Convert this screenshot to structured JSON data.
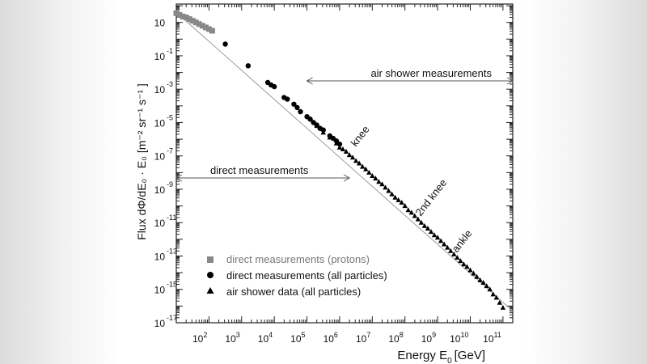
{
  "chart_data": {
    "type": "scatter",
    "xlabel_main": "Energy E",
    "xlabel_sub": "0",
    "xlabel_unit": "[GeV]",
    "ylabel": "Flux dΦ/dE₀ · E₀ [m⁻² sr⁻¹ s⁻¹ ]",
    "xscale": "log",
    "yscale": "log",
    "xlim_exp": [
      1.0,
      11.3
    ],
    "ylim_exp": [
      -17.0,
      2.1
    ],
    "x_tick_labels": [
      {
        "base": "10",
        "exp": "2"
      },
      {
        "base": "10",
        "exp": "3"
      },
      {
        "base": "10",
        "exp": "4"
      },
      {
        "base": "10",
        "exp": "5"
      },
      {
        "base": "10",
        "exp": "6"
      },
      {
        "base": "10",
        "exp": "7"
      },
      {
        "base": "10",
        "exp": "8"
      },
      {
        "base": "10",
        "exp": "9"
      },
      {
        "base": "10",
        "exp": "10"
      },
      {
        "base": "10",
        "exp": "11"
      }
    ],
    "y_tick_labels": [
      {
        "base": "10",
        "exp": ""
      },
      {
        "base": "10",
        "exp": "-1"
      },
      {
        "base": "10",
        "exp": "-3"
      },
      {
        "base": "10",
        "exp": "-5"
      },
      {
        "base": "10",
        "exp": "-7"
      },
      {
        "base": "10",
        "exp": "-9"
      },
      {
        "base": "10",
        "exp": "-11"
      },
      {
        "base": "10",
        "exp": "-13"
      },
      {
        "base": "10",
        "exp": "-15"
      },
      {
        "base": "10",
        "exp": "-17"
      }
    ],
    "legend": [
      {
        "label": "direct measurements (protons)",
        "marker": "square",
        "color": "#888888"
      },
      {
        "label": "direct measurements (all particles)",
        "marker": "circle",
        "color": "#000000"
      },
      {
        "label": "air shower data (all particles)",
        "marker": "triangle",
        "color": "#000000"
      }
    ],
    "legend_position": "bottom-left",
    "annotations": [
      {
        "text": "air shower measurements"
      },
      {
        "text": "direct measurements"
      },
      {
        "text": "knee"
      },
      {
        "text": "2nd knee"
      },
      {
        "text": "ankle"
      }
    ],
    "arrows": {
      "air_shower": {
        "from_log_e": 5.0,
        "to_log_e": 11.3
      },
      "direct": {
        "from_log_e": 1.0,
        "to_log_e": 6.3
      }
    },
    "fit_line": {
      "points": [
        [
          1.0,
          1.6
        ],
        [
          11.3,
          -16.3
        ]
      ]
    },
    "series": [
      {
        "name": "direct measurements (protons)",
        "marker": "square",
        "color": "#888888",
        "points": [
          [
            1.0,
            1.55
          ],
          [
            1.1,
            1.45
          ],
          [
            1.2,
            1.35
          ],
          [
            1.3,
            1.3
          ],
          [
            1.4,
            1.2
          ],
          [
            1.5,
            1.1
          ],
          [
            1.6,
            1.0
          ],
          [
            1.7,
            0.9
          ],
          [
            1.8,
            0.8
          ],
          [
            1.9,
            0.7
          ],
          [
            2.0,
            0.6
          ],
          [
            2.1,
            0.5
          ]
        ]
      },
      {
        "name": "direct measurements (all particles)",
        "marker": "circle",
        "color": "#000000",
        "points": [
          [
            2.5,
            -0.3
          ],
          [
            3.2,
            -1.6
          ],
          [
            3.8,
            -2.6
          ],
          [
            3.9,
            -2.75
          ],
          [
            4.0,
            -2.85
          ],
          [
            4.3,
            -3.5
          ],
          [
            4.4,
            -3.6
          ],
          [
            4.6,
            -3.9
          ],
          [
            4.7,
            -4.1
          ],
          [
            4.8,
            -4.35
          ],
          [
            5.0,
            -4.65
          ],
          [
            5.1,
            -4.8
          ],
          [
            5.2,
            -5.0
          ],
          [
            5.3,
            -5.15
          ],
          [
            5.4,
            -5.35
          ],
          [
            5.5,
            -5.45
          ],
          [
            5.7,
            -5.8
          ],
          [
            5.8,
            -5.95
          ],
          [
            5.9,
            -6.1
          ],
          [
            6.0,
            -6.3
          ]
        ]
      },
      {
        "name": "air shower data (all particles)",
        "marker": "triangle",
        "color": "#000000",
        "points": [
          [
            5.3,
            -5.2
          ],
          [
            5.5,
            -5.6
          ],
          [
            5.7,
            -5.9
          ],
          [
            5.9,
            -6.25
          ],
          [
            6.0,
            -6.5
          ],
          [
            6.1,
            -6.6
          ],
          [
            6.2,
            -6.75
          ],
          [
            6.3,
            -6.95
          ],
          [
            6.4,
            -7.1
          ],
          [
            6.5,
            -7.3
          ],
          [
            6.6,
            -7.45
          ],
          [
            6.7,
            -7.65
          ],
          [
            6.8,
            -7.8
          ],
          [
            6.9,
            -8.0
          ],
          [
            7.0,
            -8.2
          ],
          [
            7.1,
            -8.35
          ],
          [
            7.2,
            -8.55
          ],
          [
            7.3,
            -8.7
          ],
          [
            7.4,
            -8.9
          ],
          [
            7.5,
            -9.1
          ],
          [
            7.6,
            -9.3
          ],
          [
            7.7,
            -9.5
          ],
          [
            7.8,
            -9.65
          ],
          [
            7.9,
            -9.8
          ],
          [
            8.0,
            -10.0
          ],
          [
            8.1,
            -10.25
          ],
          [
            8.2,
            -10.4
          ],
          [
            8.3,
            -10.6
          ],
          [
            8.4,
            -10.8
          ],
          [
            8.5,
            -11.0
          ],
          [
            8.6,
            -11.2
          ],
          [
            8.7,
            -11.35
          ],
          [
            8.8,
            -11.55
          ],
          [
            8.9,
            -11.75
          ],
          [
            9.0,
            -11.9
          ],
          [
            9.1,
            -12.1
          ],
          [
            9.2,
            -12.3
          ],
          [
            9.3,
            -12.5
          ],
          [
            9.4,
            -12.7
          ],
          [
            9.5,
            -12.9
          ],
          [
            9.6,
            -13.1
          ],
          [
            9.7,
            -13.3
          ],
          [
            9.8,
            -13.5
          ],
          [
            9.9,
            -13.65
          ],
          [
            10.0,
            -13.85
          ],
          [
            10.1,
            -14.05
          ],
          [
            10.2,
            -14.25
          ],
          [
            10.3,
            -14.45
          ],
          [
            10.4,
            -14.6
          ],
          [
            10.5,
            -14.8
          ],
          [
            10.6,
            -15.0
          ],
          [
            10.7,
            -15.3
          ],
          [
            10.8,
            -15.5
          ],
          [
            10.9,
            -15.8
          ],
          [
            11.0,
            -16.1
          ]
        ]
      }
    ]
  }
}
